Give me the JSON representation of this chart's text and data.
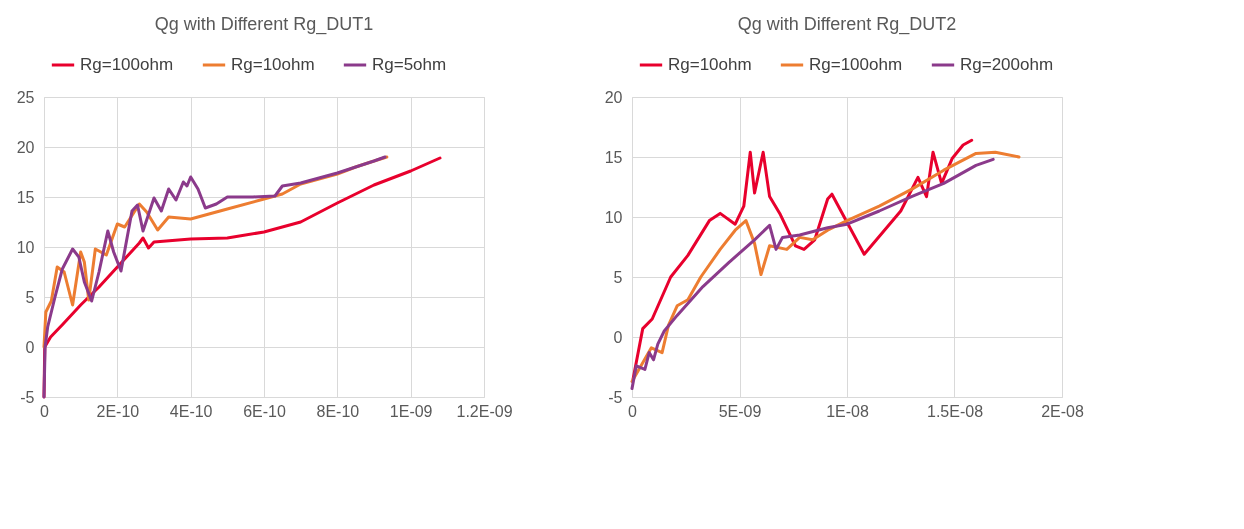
{
  "chart_data": [
    {
      "type": "line",
      "title": "Qg with Different Rg_DUT1",
      "legend": "top",
      "grid": true,
      "line_style": "solid",
      "marker": "none",
      "xlim": [
        0,
        1.2e-09
      ],
      "xticks": [
        0,
        {
          "value": 2e-10,
          "label": "2E-10"
        },
        {
          "value": 4e-10,
          "label": "4E-10"
        },
        {
          "value": 6e-10,
          "label": "6E-10"
        },
        {
          "value": 8e-10,
          "label": "8E-10"
        },
        {
          "value": 1e-09,
          "label": "1E-09"
        },
        {
          "value": 1.2e-09,
          "label": "1.2E-09"
        }
      ],
      "ylim": [
        -5,
        25
      ],
      "yticks": [
        -5,
        0,
        5,
        10,
        15,
        20,
        25
      ],
      "series": [
        {
          "name": "Rg=100ohm",
          "color": "#e8002d",
          "x": [
            0,
            2e-12,
            1.8e-11,
            5.2e-11,
            1e-10,
            1.5e-10,
            2e-10,
            2.3e-10,
            2.6e-10,
            2.7e-10,
            2.85e-10,
            3e-10,
            4e-10,
            5e-10,
            6e-10,
            7e-10,
            8e-10,
            9e-10,
            1e-09,
            1.08e-09
          ],
          "values": [
            -5,
            0,
            1.0,
            2.3,
            4.2,
            6,
            8,
            9.2,
            10.4,
            10.9,
            9.9,
            10.5,
            10.8,
            10.9,
            11.5,
            12.5,
            14.4,
            16.2,
            17.6,
            18.9
          ]
        },
        {
          "name": "Rg=10ohm",
          "color": "#ed7d31",
          "x": [
            0,
            5e-12,
            2e-11,
            3.6e-11,
            5.5e-11,
            7.8e-11,
            1e-10,
            1.1e-10,
            1.22e-10,
            1.4e-10,
            1.7e-10,
            2e-10,
            2.2e-10,
            2.6e-10,
            2.8e-10,
            3.1e-10,
            3.4e-10,
            4e-10,
            4.5e-10,
            5e-10,
            5.9e-10,
            6.5e-10,
            7e-10,
            8e-10,
            8.5e-10,
            9e-10,
            9.35e-10
          ],
          "values": [
            0,
            3.5,
            4.6,
            8.0,
            7.5,
            4.2,
            9.5,
            8.5,
            4.7,
            9.8,
            9.2,
            12.3,
            12.0,
            14.3,
            13.5,
            11.7,
            13.0,
            12.8,
            13.3,
            13.8,
            14.7,
            15.3,
            16.3,
            17.3,
            18.0,
            18.6,
            19.0
          ]
        },
        {
          "name": "Rg=5ohm",
          "color": "#8b3a8b",
          "x": [
            0,
            3e-12,
            1e-11,
            3e-11,
            5e-11,
            7.8e-11,
            9.5e-11,
            1.1e-10,
            1.3e-10,
            1.5e-10,
            1.74e-10,
            1.9e-10,
            2.1e-10,
            2.4e-10,
            2.55e-10,
            2.7e-10,
            3e-10,
            3.2e-10,
            3.4e-10,
            3.6e-10,
            3.8e-10,
            3.9e-10,
            4e-10,
            4.2e-10,
            4.4e-10,
            4.7e-10,
            5e-10,
            5.7e-10,
            6.3e-10,
            6.5e-10,
            7e-10,
            7.5e-10,
            8e-10,
            8.5e-10,
            9e-10,
            9.3e-10
          ],
          "values": [
            -5,
            0,
            2,
            5,
            7.8,
            9.8,
            9,
            6.5,
            4.6,
            7.5,
            11.6,
            9.5,
            7.6,
            13.6,
            14.2,
            11.6,
            14.9,
            13.6,
            15.8,
            14.7,
            16.5,
            16.1,
            17.0,
            15.8,
            13.9,
            14.3,
            15.0,
            15.0,
            15.1,
            16.1,
            16.4,
            16.9,
            17.4,
            18.0,
            18.6,
            19.0
          ]
        }
      ]
    },
    {
      "type": "line",
      "title": "Qg with Different Rg_DUT2",
      "legend": "top",
      "grid": true,
      "line_style": "solid",
      "marker": "none",
      "xlim": [
        0,
        2e-08
      ],
      "xticks": [
        0,
        {
          "value": 5e-09,
          "label": "5E-09"
        },
        {
          "value": 1e-08,
          "label": "1E-08"
        },
        {
          "value": 1.5e-08,
          "label": "1.5E-08"
        },
        {
          "value": 2e-08,
          "label": "2E-08"
        }
      ],
      "ylim": [
        -5,
        20
      ],
      "yticks": [
        -5,
        0,
        5,
        10,
        15,
        20
      ],
      "series": [
        {
          "name": "Rg=10ohm",
          "color": "#e8002d",
          "x": [
            5e-11,
            5e-10,
            9.4e-10,
            1.8e-09,
            2.6e-09,
            3.6e-09,
            4.1e-09,
            4.8e-09,
            5.2e-09,
            5.5e-09,
            5.7e-09,
            6.1e-09,
            6.4e-09,
            6.9e-09,
            7.6e-09,
            8e-09,
            8.5e-09,
            9.1e-09,
            9.3e-09,
            9.9e-09,
            1.08e-08,
            1.25e-08,
            1.33e-08,
            1.37e-08,
            1.4e-08,
            1.44e-08,
            1.49e-08,
            1.54e-08,
            1.58e-08
          ],
          "values": [
            -3.5,
            0.7,
            1.5,
            5.0,
            6.8,
            9.7,
            10.3,
            9.4,
            10.9,
            15.4,
            12.0,
            15.4,
            11.7,
            10.2,
            7.6,
            7.3,
            8.1,
            11.5,
            11.9,
            9.9,
            6.9,
            10.5,
            13.3,
            11.7,
            15.4,
            12.8,
            14.9,
            16.0,
            16.4
          ]
        },
        {
          "name": "Rg=100ohm",
          "color": "#ed7d31",
          "x": [
            0,
            9e-10,
            1.4e-09,
            1.7e-09,
            2.1e-09,
            2.6e-09,
            3.2e-09,
            4.1e-09,
            4.8e-09,
            5.3e-09,
            5.7e-09,
            6e-09,
            6.4e-09,
            7.2e-09,
            7.8e-09,
            8.4e-09,
            9.1e-09,
            1e-08,
            1.15e-08,
            1.3e-08,
            1.45e-08,
            1.6e-08,
            1.69e-08,
            1.8e-08
          ],
          "values": [
            -3.7,
            -0.9,
            -1.3,
            1.0,
            2.6,
            3.1,
            5.0,
            7.3,
            8.9,
            9.7,
            7.8,
            5.2,
            7.6,
            7.3,
            8.3,
            8.1,
            8.9,
            9.7,
            10.9,
            12.3,
            13.9,
            15.3,
            15.4,
            15.0
          ]
        },
        {
          "name": "Rg=200ohm",
          "color": "#8b3a8b",
          "x": [
            0,
            2e-10,
            6e-10,
            8e-10,
            1e-09,
            1.2e-09,
            1.5e-09,
            2.1e-09,
            3.3e-09,
            4.5e-09,
            5.7e-09,
            6.4e-09,
            6.7e-09,
            7e-09,
            7.8e-09,
            9.1e-09,
            1e-08,
            1.15e-08,
            1.3e-08,
            1.45e-08,
            1.6e-08,
            1.68e-08
          ],
          "values": [
            -4.3,
            -2.4,
            -2.7,
            -1.3,
            -1.9,
            -0.6,
            0.5,
            1.8,
            4.2,
            6.2,
            8.1,
            9.3,
            7.3,
            8.3,
            8.5,
            9.1,
            9.4,
            10.5,
            11.7,
            12.8,
            14.3,
            14.8
          ]
        }
      ]
    }
  ]
}
